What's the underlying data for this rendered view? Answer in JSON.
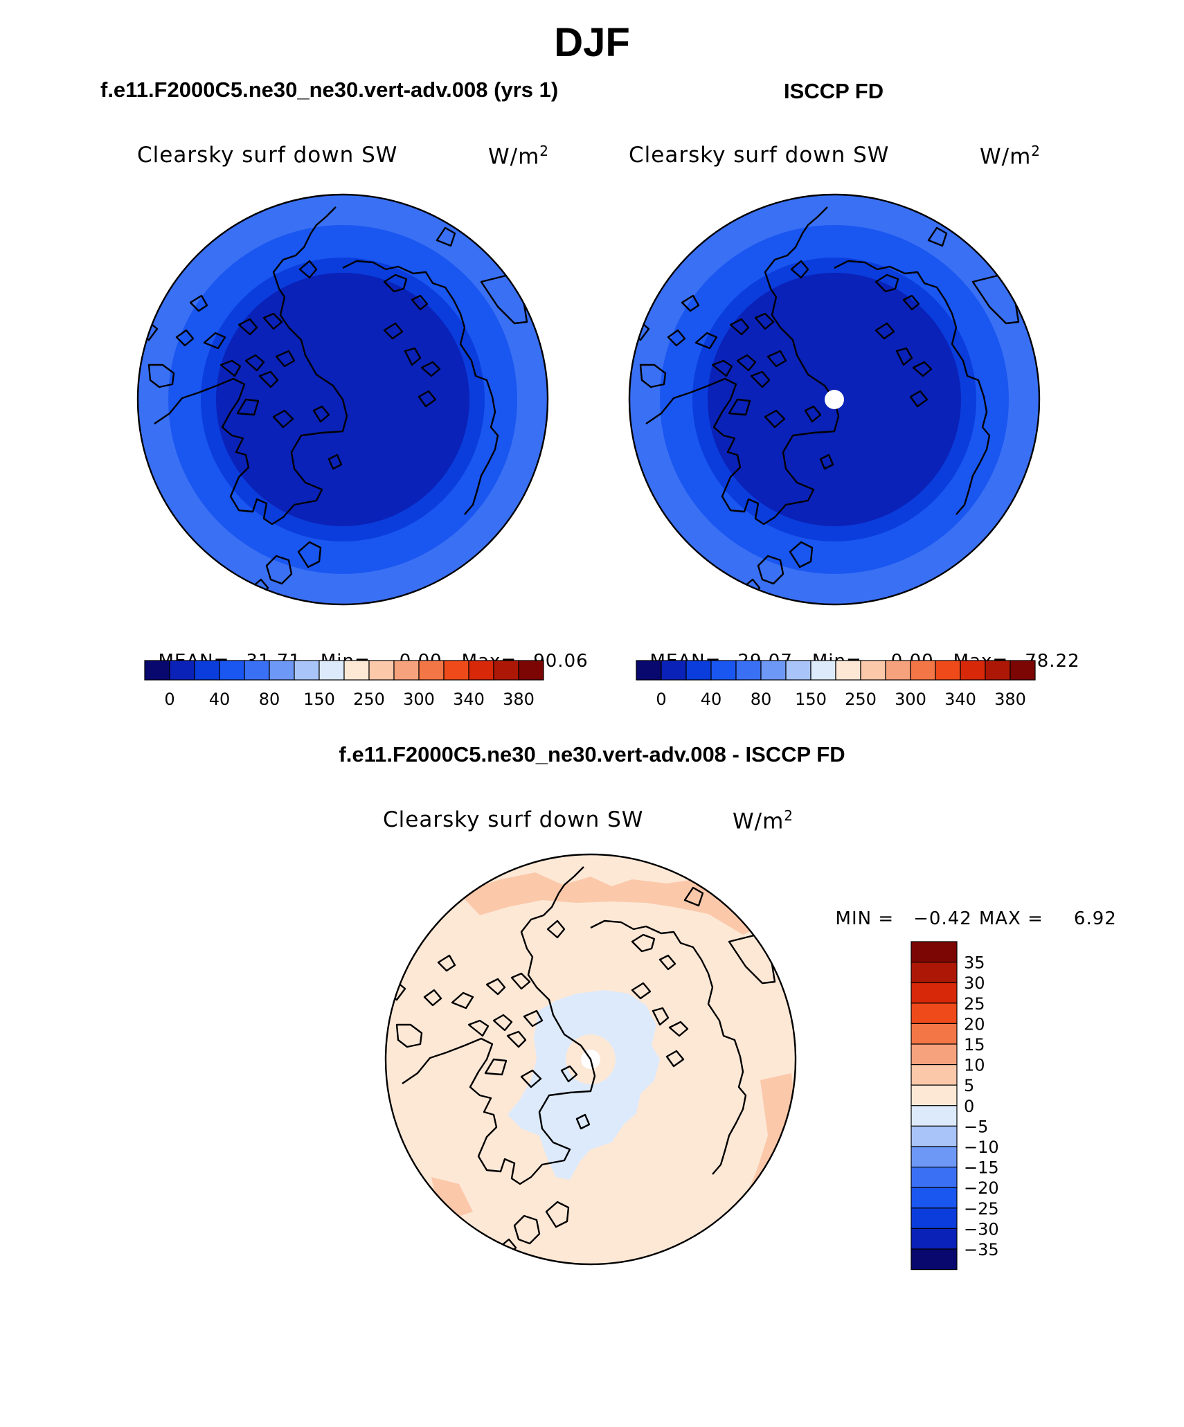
{
  "figure": {
    "title": "DJF",
    "subtitle_test": "f.e11.F2000C5.ne30_ne30.vert-adv.008 (yrs 1)",
    "subtitle_obs": "ISCCP FD",
    "subtitle_diff": "f.e11.F2000C5.ne30_ne30.vert-adv.008 - ISCCP FD"
  },
  "panel_test": {
    "var_label": "Clearsky surf down SW",
    "units_base": "W/m",
    "units_sup": "2",
    "stats": {
      "mean_label": "MEAN=",
      "mean": "31.71",
      "min_label": "Min=",
      "min": "0.00",
      "max_label": "Max=",
      "max": "90.06"
    }
  },
  "panel_obs": {
    "var_label": "Clearsky surf down SW",
    "units_base": "W/m",
    "units_sup": "2",
    "stats": {
      "mean_label": "MEAN=",
      "mean": "29.07",
      "min_label": "Min=",
      "min": "0.00",
      "max_label": "Max=",
      "max": "78.22"
    }
  },
  "panel_diff": {
    "var_label": "Clearsky surf down SW",
    "units_base": "W/m",
    "units_sup": "2",
    "min_label": "MIN =",
    "min_value": "−0.42",
    "max_label": "MAX =",
    "max_value": "6.92"
  },
  "colorbar_abs": {
    "colors": [
      "#08086e",
      "#0a22b8",
      "#0a3ddc",
      "#1a56f0",
      "#3a70f4",
      "#6e98f6",
      "#a8c4f8",
      "#dceafc",
      "#fde8d6",
      "#fbc8aa",
      "#f6a27c",
      "#f37646",
      "#ef4a1a",
      "#d8280a",
      "#ad1806",
      "#7c0604"
    ],
    "tick_labels": [
      "0",
      "40",
      "80",
      "150",
      "250",
      "300",
      "340",
      "380"
    ]
  },
  "colorbar_diff": {
    "colors": [
      "#7c0604",
      "#ad1806",
      "#d8280a",
      "#ef4a1a",
      "#f37646",
      "#f6a27c",
      "#fbc8aa",
      "#fde8d6",
      "#dceafc",
      "#a8c4f8",
      "#6e98f6",
      "#3a70f4",
      "#1a56f0",
      "#0a3ddc",
      "#0a22b8",
      "#08086e"
    ],
    "tick_labels": [
      "35",
      "30",
      "25",
      "20",
      "15",
      "10",
      "5",
      "0",
      "−5",
      "−10",
      "−15",
      "−20",
      "−25",
      "−30",
      "−35"
    ]
  },
  "map_colors": {
    "band_outer": "#3a70f4",
    "band_mid": "#1a56f0",
    "band_inner": "#0a3ddc",
    "core": "#0a22b8",
    "diff_pos": "#fde8d6",
    "diff_pos_strong": "#fbc8aa",
    "diff_neg": "#dceafc",
    "pole_hole": "#ffffff",
    "coast": "#000000"
  }
}
